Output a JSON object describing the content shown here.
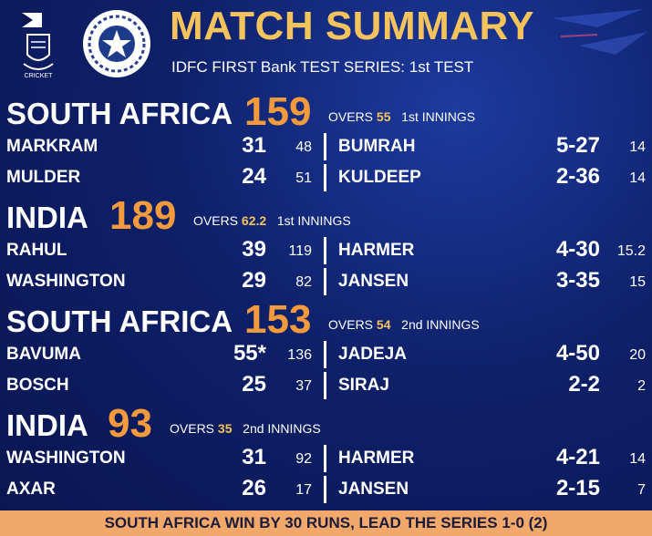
{
  "header": {
    "title": "MATCH SUMMARY",
    "subtitle": "IDFC FIRST Bank TEST SERIES: 1st TEST",
    "sa_logo_label": "CRICKET"
  },
  "innings": [
    {
      "team": "SOUTH AFRICA",
      "score": "159",
      "overs_label": "OVERS",
      "overs": "55",
      "innings_label": "1st INNINGS",
      "rows": [
        {
          "batter": "MARKRAM",
          "runs": "31",
          "balls": "48",
          "bowler": "BUMRAH",
          "figures": "5-27",
          "bowl_overs": "14"
        },
        {
          "batter": "MULDER",
          "runs": "24",
          "balls": "51",
          "bowler": "KULDEEP",
          "figures": "2-36",
          "bowl_overs": "14"
        }
      ]
    },
    {
      "team": "INDIA",
      "score": "189",
      "overs_label": "OVERS",
      "overs": "62.2",
      "innings_label": "1st INNINGS",
      "rows": [
        {
          "batter": "RAHUL",
          "runs": "39",
          "balls": "119",
          "bowler": "HARMER",
          "figures": "4-30",
          "bowl_overs": "15.2"
        },
        {
          "batter": "WASHINGTON",
          "runs": "29",
          "balls": "82",
          "bowler": "JANSEN",
          "figures": "3-35",
          "bowl_overs": "15"
        }
      ]
    },
    {
      "team": "SOUTH AFRICA",
      "score": "153",
      "overs_label": "OVERS",
      "overs": "54",
      "innings_label": "2nd INNINGS",
      "rows": [
        {
          "batter": "BAVUMA",
          "runs": "55*",
          "balls": "136",
          "bowler": "JADEJA",
          "figures": "4-50",
          "bowl_overs": "20"
        },
        {
          "batter": "BOSCH",
          "runs": "25",
          "balls": "37",
          "bowler": "SIRAJ",
          "figures": "2-2",
          "bowl_overs": "2"
        }
      ]
    },
    {
      "team": "INDIA",
      "score": "93",
      "overs_label": "OVERS",
      "overs": "35",
      "innings_label": "2nd INNINGS",
      "rows": [
        {
          "batter": "WASHINGTON",
          "runs": "31",
          "balls": "92",
          "bowler": "HARMER",
          "figures": "4-21",
          "bowl_overs": "14"
        },
        {
          "batter": "AXAR",
          "runs": "26",
          "balls": "17",
          "bowler": "JANSEN",
          "figures": "2-15",
          "bowl_overs": "7"
        }
      ]
    }
  ],
  "footer": "SOUTH AFRICA WIN BY 30 RUNS, LEAD THE SERIES 1-0 (2)",
  "colors": {
    "accent": "#f5c35b",
    "score": "#f39a3c",
    "background": "#0e2069",
    "footer_bg": "#f2a86b"
  }
}
